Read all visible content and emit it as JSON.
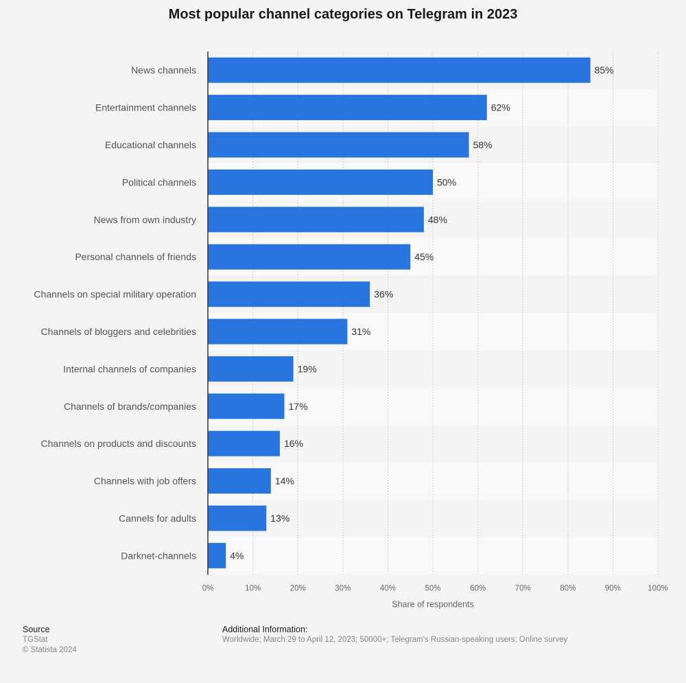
{
  "title": "Most popular channel categories on Telegram in 2023",
  "chart_data": {
    "type": "bar",
    "orientation": "horizontal",
    "title": "Most popular channel categories on Telegram in 2023",
    "categories": [
      "News channels",
      "Entertainment channels",
      "Educational channels",
      "Political channels",
      "News from own industry",
      "Personal channels of friends",
      "Channels on special military operation",
      "Channels of bloggers and celebrities",
      "Internal channels of companies",
      "Channels of brands/companies",
      "Channels on products and discounts",
      "Channels with job offers",
      "Cannels for adults",
      "Darknet-channels"
    ],
    "values": [
      85,
      62,
      58,
      50,
      48,
      45,
      36,
      31,
      19,
      17,
      16,
      14,
      13,
      4
    ],
    "value_labels": [
      "85%",
      "62%",
      "58%",
      "50%",
      "48%",
      "45%",
      "36%",
      "31%",
      "19%",
      "17%",
      "16%",
      "14%",
      "13%",
      "4%"
    ],
    "xlabel": "Share of respondents",
    "ylabel": "",
    "xlim": [
      0,
      100
    ],
    "x_ticks": [
      0,
      10,
      20,
      30,
      40,
      50,
      60,
      70,
      80,
      90,
      100
    ],
    "x_tick_labels": [
      "0%",
      "10%",
      "20%",
      "30%",
      "40%",
      "50%",
      "60%",
      "70%",
      "80%",
      "90%",
      "100%"
    ],
    "grid": true,
    "bar_color": "#2876dd"
  },
  "footer": {
    "source_heading": "Source",
    "source_name": "TGStat",
    "copyright": "© Statista 2024",
    "info_heading": "Additional Information:",
    "info_text": "Worldwide; March 29 to April 12, 2023; 50000+; Telegram's Russian-speaking users; Online survey"
  },
  "colors": {
    "background": "#f4f4f4",
    "band_light": "#f9f9f9",
    "bar": "#2876dd"
  }
}
